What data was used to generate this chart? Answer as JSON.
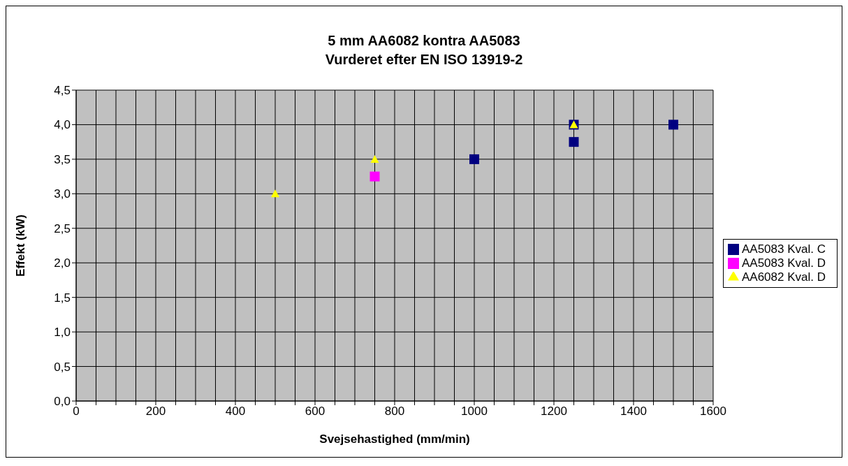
{
  "chart_data": {
    "type": "scatter",
    "title": "5 mm AA6082 kontra AA5083",
    "subtitle": "Vurderet efter EN ISO 13919-2",
    "xlabel": "Svejsehastighed (mm/min)",
    "ylabel": "Effekt (kW)",
    "xlim": [
      0,
      1600
    ],
    "xticks": [
      0,
      {
        "value": 50,
        "label": null
      },
      200,
      {
        "value": 100,
        "label": null
      },
      {
        "value": 150,
        "label": null
      },
      {
        "value": 250,
        "label": null
      },
      {
        "value": 300,
        "label": null
      },
      {
        "value": 350,
        "label": null
      },
      400,
      {
        "value": 450,
        "label": null
      },
      {
        "value": 500,
        "label": null
      },
      {
        "value": 550,
        "label": null
      },
      600,
      {
        "value": 650,
        "label": null
      },
      {
        "value": 700,
        "label": null
      },
      {
        "value": 750,
        "label": null
      },
      800,
      {
        "value": 850,
        "label": null
      },
      {
        "value": 900,
        "label": null
      },
      {
        "value": 950,
        "label": null
      },
      1000,
      {
        "value": 1050,
        "label": null
      },
      {
        "value": 1100,
        "label": null
      },
      {
        "value": 1150,
        "label": null
      },
      1200,
      {
        "value": 1250,
        "label": null
      },
      {
        "value": 1300,
        "label": null
      },
      {
        "value": 1350,
        "label": null
      },
      1400,
      {
        "value": 1450,
        "label": null
      },
      {
        "value": 1500,
        "label": null
      },
      {
        "value": 1550,
        "label": null
      },
      1600
    ],
    "ylim": [
      0,
      4.5
    ],
    "yticks": [
      {
        "value": 0,
        "label": "0,0"
      },
      {
        "value": 0.5,
        "label": "0,5"
      },
      {
        "value": 1,
        "label": "1,0"
      },
      {
        "value": 1.5,
        "label": "1,5"
      },
      {
        "value": 2,
        "label": "2,0"
      },
      {
        "value": 2.5,
        "label": "2,5"
      },
      {
        "value": 3,
        "label": "3,0"
      },
      {
        "value": 3.5,
        "label": "3,5"
      },
      {
        "value": 4,
        "label": "4,0"
      },
      {
        "value": 4.5,
        "label": "4,5"
      }
    ],
    "grid": true,
    "legend": "right",
    "series": [
      {
        "name": "AA5083 Kval. C",
        "color": "#000080",
        "marker": "square",
        "x": [
          1000,
          1250,
          1250,
          1500
        ],
        "values": [
          3.5,
          4.0,
          3.75,
          4.0
        ]
      },
      {
        "name": "AA5083 Kval. D",
        "color": "#ff00ff",
        "marker": "square",
        "x": [
          750
        ],
        "values": [
          3.25
        ]
      },
      {
        "name": "AA6082 Kval. D",
        "color": "#ffff00",
        "marker": "triangle",
        "x": [
          500,
          750,
          1250
        ],
        "values": [
          3.0,
          3.5,
          4.0
        ]
      }
    ]
  }
}
